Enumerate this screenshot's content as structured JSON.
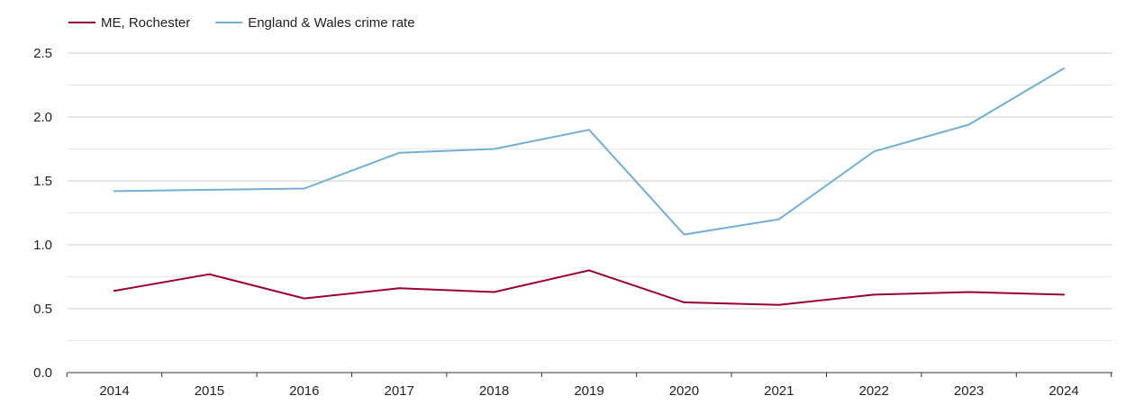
{
  "chart_data": {
    "type": "line",
    "title": "",
    "xlabel": "",
    "ylabel": "",
    "categories": [
      "2014",
      "2015",
      "2016",
      "2017",
      "2018",
      "2019",
      "2020",
      "2021",
      "2022",
      "2023",
      "2024"
    ],
    "ylim": [
      0,
      2.5
    ],
    "y_ticks": [
      "0.0",
      "0.5",
      "1.0",
      "1.5",
      "2.0",
      "2.5"
    ],
    "grid": true,
    "legend_position": "top-left",
    "series": [
      {
        "name": "ME, Rochester",
        "color": "#990033",
        "values": [
          0.64,
          0.77,
          0.58,
          0.66,
          0.63,
          0.8,
          0.55,
          0.53,
          0.61,
          0.63,
          0.61
        ]
      },
      {
        "name": "England & Wales crime rate",
        "color": "#72afd2",
        "values": [
          1.42,
          1.43,
          1.44,
          1.72,
          1.75,
          1.9,
          1.08,
          1.2,
          1.73,
          1.94,
          2.38
        ]
      }
    ]
  }
}
